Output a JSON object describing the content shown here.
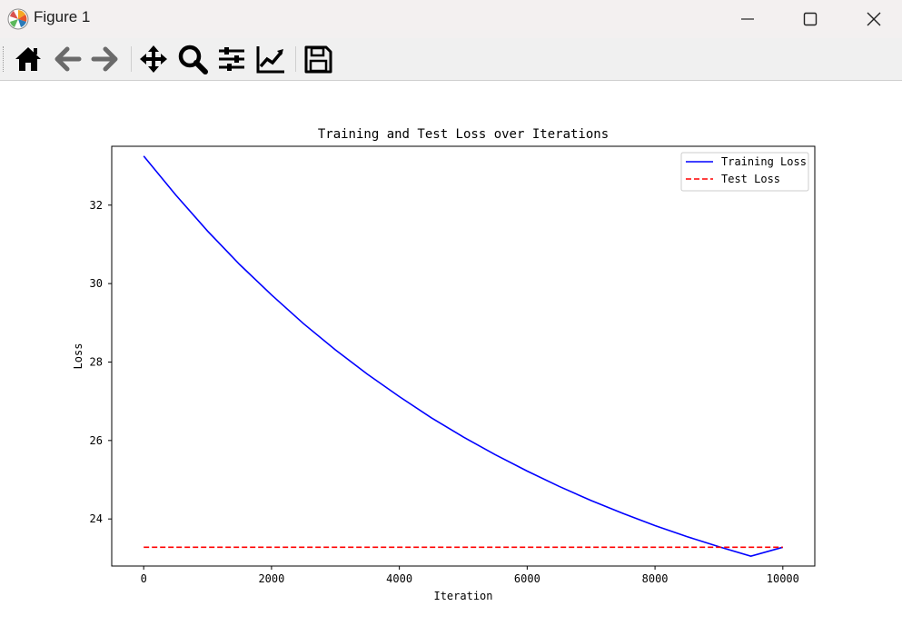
{
  "window": {
    "title": "Figure 1",
    "icons": [
      "matplotlib-logo-icon",
      "minimize-icon",
      "maximize-icon",
      "close-icon"
    ]
  },
  "toolbar": {
    "buttons": [
      {
        "name": "home",
        "icon": "home-icon"
      },
      {
        "name": "back",
        "icon": "back-arrow-icon"
      },
      {
        "name": "forward",
        "icon": "forward-arrow-icon"
      },
      {
        "name": "pan",
        "icon": "move-icon"
      },
      {
        "name": "zoom",
        "icon": "zoom-icon"
      },
      {
        "name": "configure-subplots",
        "icon": "sliders-icon"
      },
      {
        "name": "edit-axis",
        "icon": "line-chart-icon"
      },
      {
        "name": "save",
        "icon": "save-icon"
      }
    ]
  },
  "chart_data": {
    "type": "line",
    "title": "Training and Test Loss over Iterations",
    "xlabel": "Iteration",
    "ylabel": "Loss",
    "xlim": [
      -500,
      10500
    ],
    "ylim": [
      22.8,
      33.5
    ],
    "xticks": [
      0,
      2000,
      4000,
      6000,
      8000,
      10000
    ],
    "yticks": [
      24,
      26,
      28,
      30,
      32
    ],
    "grid": false,
    "legend_position": "upper right",
    "series": [
      {
        "name": "Training Loss",
        "color": "#0000ff",
        "style": "solid",
        "x": [
          0,
          500,
          1000,
          1500,
          2000,
          2500,
          3000,
          3500,
          4000,
          4500,
          5000,
          5500,
          6000,
          6500,
          7000,
          7500,
          8000,
          8500,
          9000,
          9500,
          10000
        ],
        "y": [
          33.25,
          32.26,
          31.34,
          30.49,
          29.71,
          28.98,
          28.31,
          27.69,
          27.12,
          26.58,
          26.09,
          25.64,
          25.22,
          24.83,
          24.47,
          24.14,
          23.83,
          23.55,
          23.29,
          23.05,
          23.28
        ]
      },
      {
        "name": "Test Loss",
        "color": "#ff0000",
        "style": "dashed",
        "x": [
          0,
          10000
        ],
        "y": [
          23.28,
          23.28
        ]
      }
    ]
  }
}
